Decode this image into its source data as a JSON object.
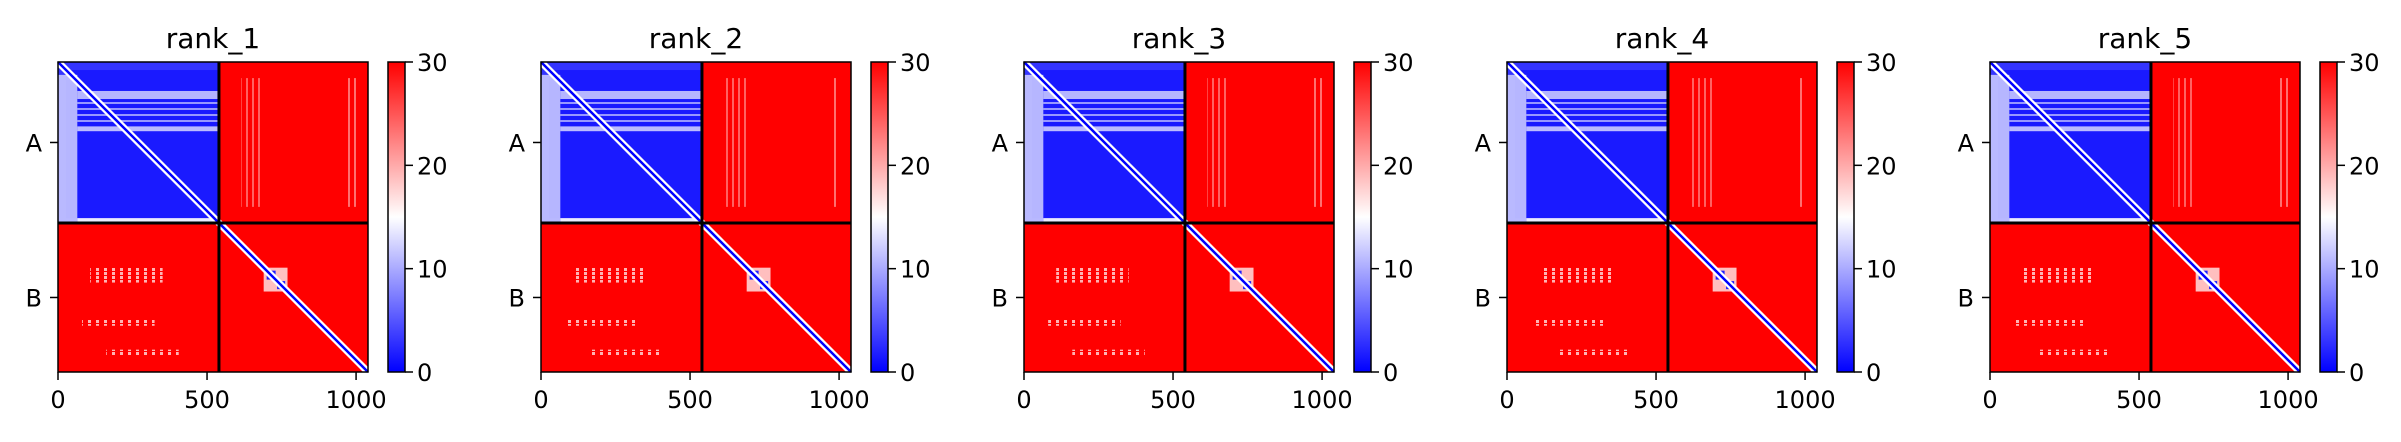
{
  "chart_data": [
    {
      "type": "heatmap",
      "title": "rank_1",
      "x_ticks": [
        0,
        500,
        1000
      ],
      "xlim": [
        0,
        1040
      ],
      "y_tick_labels": [
        "A",
        "B"
      ],
      "chain_boundary": 540,
      "chain_length": 1040,
      "colorbar": {
        "ticks": [
          0,
          10,
          20,
          30
        ],
        "range": [
          0,
          30
        ],
        "colormap": [
          "#0000ff",
          "#ffffff",
          "#ff0000"
        ]
      }
    },
    {
      "type": "heatmap",
      "title": "rank_2",
      "x_ticks": [
        0,
        500,
        1000
      ],
      "xlim": [
        0,
        1040
      ],
      "y_tick_labels": [
        "A",
        "B"
      ],
      "chain_boundary": 540,
      "chain_length": 1040,
      "colorbar": {
        "ticks": [
          0,
          10,
          20,
          30
        ],
        "range": [
          0,
          30
        ],
        "colormap": [
          "#0000ff",
          "#ffffff",
          "#ff0000"
        ]
      }
    },
    {
      "type": "heatmap",
      "title": "rank_3",
      "x_ticks": [
        0,
        500,
        1000
      ],
      "xlim": [
        0,
        1040
      ],
      "y_tick_labels": [
        "A",
        "B"
      ],
      "chain_boundary": 540,
      "chain_length": 1040,
      "colorbar": {
        "ticks": [
          0,
          10,
          20,
          30
        ],
        "range": [
          0,
          30
        ],
        "colormap": [
          "#0000ff",
          "#ffffff",
          "#ff0000"
        ]
      }
    },
    {
      "type": "heatmap",
      "title": "rank_4",
      "x_ticks": [
        0,
        500,
        1000
      ],
      "xlim": [
        0,
        1040
      ],
      "y_tick_labels": [
        "A",
        "B"
      ],
      "chain_boundary": 540,
      "chain_length": 1040,
      "colorbar": {
        "ticks": [
          0,
          10,
          20,
          30
        ],
        "range": [
          0,
          30
        ],
        "colormap": [
          "#0000ff",
          "#ffffff",
          "#ff0000"
        ]
      }
    },
    {
      "type": "heatmap",
      "title": "rank_5",
      "x_ticks": [
        0,
        500,
        1000
      ],
      "xlim": [
        0,
        1040
      ],
      "y_tick_labels": [
        "A",
        "B"
      ],
      "chain_boundary": 540,
      "chain_length": 1040,
      "colorbar": {
        "ticks": [
          0,
          10,
          20,
          30
        ],
        "range": [
          0,
          30
        ],
        "colormap": [
          "#0000ff",
          "#ffffff",
          "#ff0000"
        ]
      }
    }
  ]
}
